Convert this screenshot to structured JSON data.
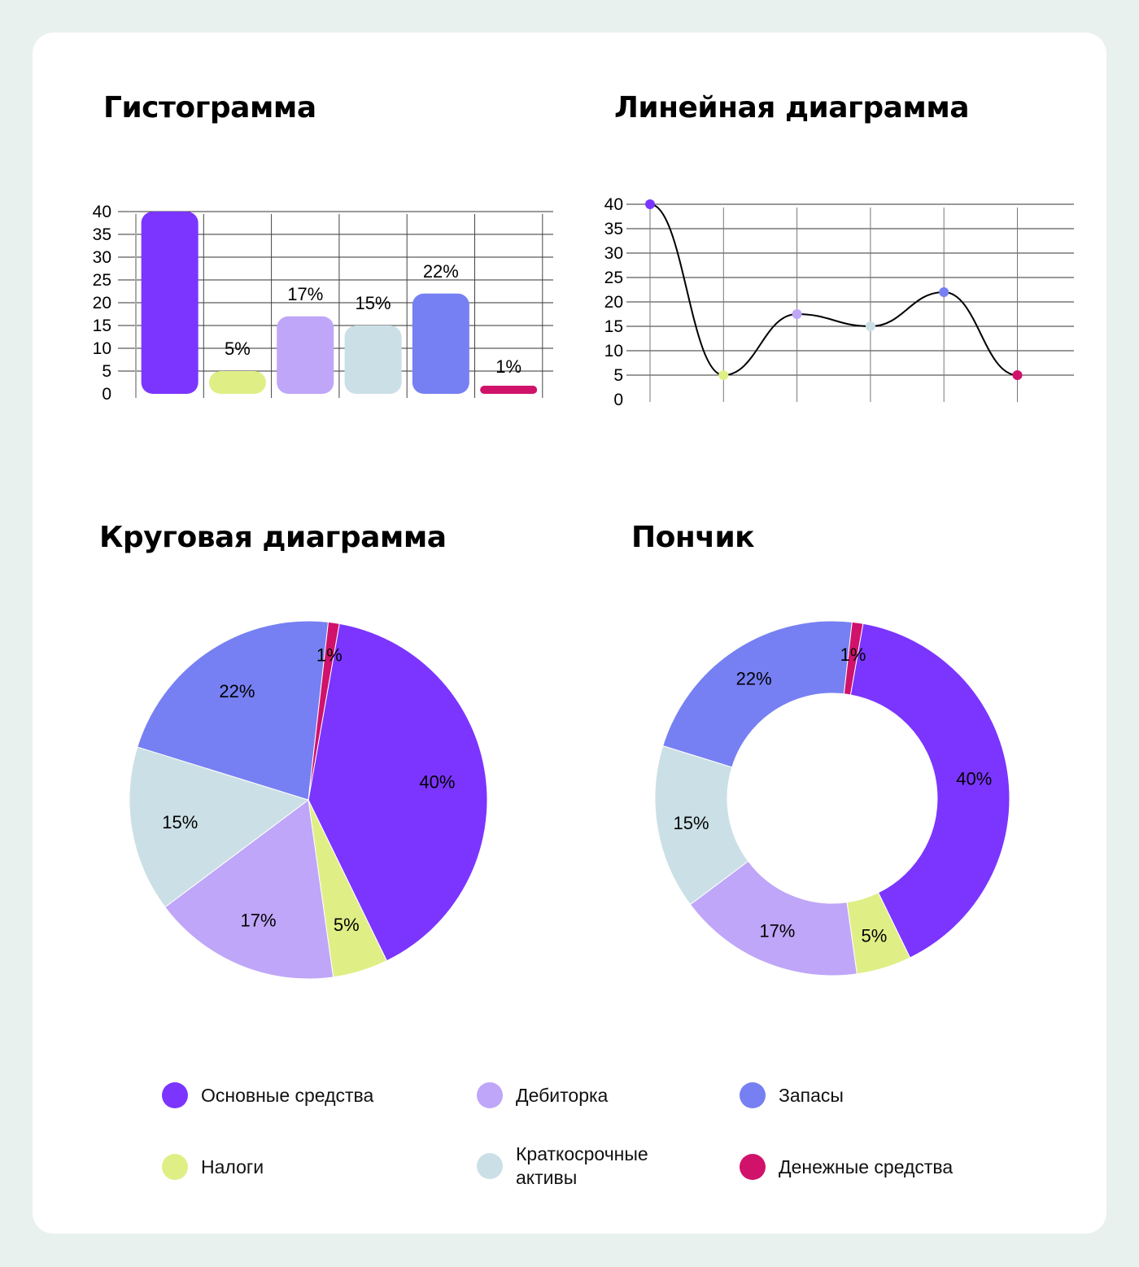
{
  "colors": {
    "fixed_assets": "#7b35ff",
    "taxes": "#dfef86",
    "receivables": "#bfa6f8",
    "short_term": "#cbe0e6",
    "inventory": "#7680f2",
    "cash": "#d0126b"
  },
  "chart_data": [
    {
      "type": "bar",
      "title": "Гистограмма",
      "categories": [
        "Основные средства",
        "Налоги",
        "Дебиторка",
        "Краткосрочные активы",
        "Запасы",
        "Денежные средства"
      ],
      "values": [
        40,
        5,
        17,
        15,
        22,
        1
      ],
      "data_labels": [
        "",
        "5%",
        "17%",
        "15%",
        "22%",
        "1%"
      ],
      "yticks": [
        "0",
        "5",
        "10",
        "15",
        "20",
        "25",
        "30",
        "35",
        "40"
      ],
      "ylim": [
        0,
        40
      ],
      "grid": true
    },
    {
      "type": "line",
      "title": "Линейная диаграмма",
      "categories": [
        "Основные средства",
        "Налоги",
        "Дебиторка",
        "Краткосрочные активы",
        "Запасы",
        "Денежные средства"
      ],
      "values": [
        40,
        5,
        17.5,
        15,
        22,
        5
      ],
      "yticks": [
        "0",
        "5",
        "10",
        "15",
        "20",
        "25",
        "30",
        "35",
        "40"
      ],
      "ylim": [
        0,
        40
      ],
      "grid": true
    },
    {
      "type": "pie",
      "title": "Круговая диаграмма",
      "categories": [
        "Основные средства",
        "Налоги",
        "Дебиторка",
        "Краткосрочные активы",
        "Запасы",
        "Денежные средства"
      ],
      "values": [
        40,
        5,
        17,
        15,
        22,
        1
      ],
      "labels": [
        "40%",
        "5%",
        "17%",
        "15%",
        "22%",
        "1%"
      ]
    },
    {
      "type": "pie",
      "variant": "donut",
      "title": "Пончик",
      "categories": [
        "Основные средства",
        "Налоги",
        "Дебиторка",
        "Краткосрочные активы",
        "Запасы",
        "Денежные средства"
      ],
      "values": [
        40,
        5,
        17,
        15,
        22,
        1
      ],
      "labels": [
        "40%",
        "5%",
        "17%",
        "15%",
        "22%",
        "1%"
      ]
    }
  ],
  "legend": [
    {
      "label": "Основные средства",
      "color_key": "fixed_assets"
    },
    {
      "label": "Дебиторка",
      "color_key": "receivables"
    },
    {
      "label": "Запасы",
      "color_key": "inventory"
    },
    {
      "label": "Налоги",
      "color_key": "taxes"
    },
    {
      "label": "Краткосрочные активы",
      "color_key": "short_term"
    },
    {
      "label": "Денежные средства",
      "color_key": "cash"
    }
  ]
}
